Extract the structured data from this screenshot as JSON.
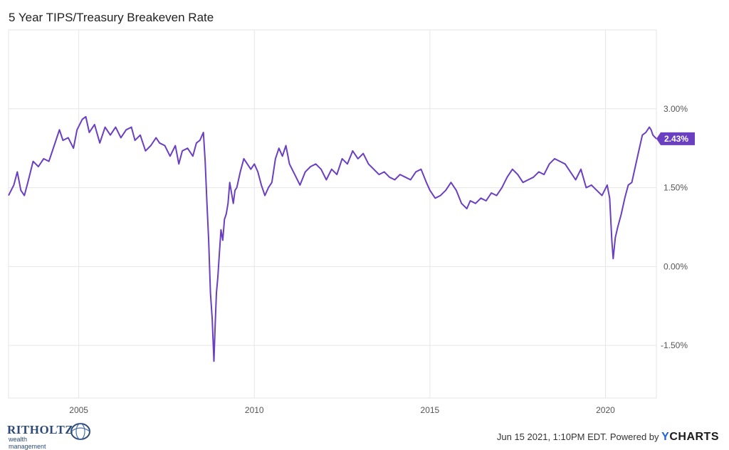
{
  "header": {
    "title": "5 Year TIPS/Treasury Breakeven Rate"
  },
  "footer": {
    "logo_name": "RITHOLTZ",
    "logo_sub": "wealth management",
    "timestamp": "Jun 15 2021, 1:10PM EDT.",
    "powered_by": "Powered by",
    "brand_y": "Y",
    "brand_rest": "CHARTS"
  },
  "colors": {
    "series": "#6a3fc1",
    "grid": "#e6e6e6",
    "axis_text": "#555555"
  },
  "chart_data": {
    "type": "line",
    "title": "5 Year TIPS/Treasury Breakeven Rate",
    "xlabel": "",
    "ylabel": "",
    "xlim": [
      2003.0,
      2021.45
    ],
    "ylim": [
      -2.5,
      4.5
    ],
    "x_ticks": [
      2005,
      2010,
      2015,
      2020
    ],
    "x_tick_labels": [
      "2005",
      "2010",
      "2015",
      "2020"
    ],
    "y_ticks": [
      3.0,
      1.5,
      0.0,
      -1.5
    ],
    "y_tick_labels": [
      "3.00%",
      "1.50%",
      "0.00%",
      "-1.50%"
    ],
    "grid": true,
    "last_value_label": "2.43%",
    "series": [
      {
        "x": [
          2003.0,
          2003.15,
          2003.25,
          2003.35,
          2003.45,
          2003.55,
          2003.7,
          2003.85,
          2004.0,
          2004.15,
          2004.3,
          2004.45,
          2004.55,
          2004.7,
          2004.85,
          2004.95,
          2005.1,
          2005.2,
          2005.3,
          2005.45,
          2005.6,
          2005.75,
          2005.9,
          2006.05,
          2006.2,
          2006.35,
          2006.5,
          2006.6,
          2006.75,
          2006.9,
          2007.05,
          2007.2,
          2007.3,
          2007.45,
          2007.6,
          2007.75,
          2007.85,
          2007.95,
          2008.1,
          2008.25,
          2008.35,
          2008.45,
          2008.55,
          2008.6,
          2008.65,
          2008.7,
          2008.75,
          2008.8,
          2008.85,
          2008.88,
          2008.92,
          2008.96,
          2009.0,
          2009.05,
          2009.1,
          2009.15,
          2009.2,
          2009.25,
          2009.3,
          2009.35,
          2009.4,
          2009.45,
          2009.5,
          2009.6,
          2009.7,
          2009.8,
          2009.9,
          2010.0,
          2010.1,
          2010.2,
          2010.3,
          2010.4,
          2010.5,
          2010.6,
          2010.7,
          2010.8,
          2010.9,
          2011.0,
          2011.15,
          2011.3,
          2011.45,
          2011.6,
          2011.75,
          2011.9,
          2012.05,
          2012.2,
          2012.35,
          2012.5,
          2012.65,
          2012.8,
          2012.95,
          2013.1,
          2013.25,
          2013.4,
          2013.55,
          2013.7,
          2013.85,
          2014.0,
          2014.15,
          2014.3,
          2014.45,
          2014.6,
          2014.75,
          2014.9,
          2015.0,
          2015.15,
          2015.3,
          2015.45,
          2015.6,
          2015.75,
          2015.9,
          2016.05,
          2016.15,
          2016.3,
          2016.45,
          2016.6,
          2016.75,
          2016.9,
          2017.05,
          2017.2,
          2017.35,
          2017.5,
          2017.65,
          2017.8,
          2017.95,
          2018.1,
          2018.25,
          2018.4,
          2018.55,
          2018.7,
          2018.85,
          2019.0,
          2019.15,
          2019.3,
          2019.45,
          2019.6,
          2019.75,
          2019.9,
          2020.05,
          2020.12,
          2020.18,
          2020.22,
          2020.28,
          2020.35,
          2020.45,
          2020.55,
          2020.65,
          2020.75,
          2020.85,
          2020.95,
          2021.05,
          2021.15,
          2021.25,
          2021.3,
          2021.35,
          2021.45
        ],
        "y": [
          1.35,
          1.55,
          1.8,
          1.45,
          1.35,
          1.6,
          2.0,
          1.9,
          2.05,
          2.0,
          2.3,
          2.6,
          2.4,
          2.45,
          2.25,
          2.6,
          2.8,
          2.85,
          2.55,
          2.7,
          2.35,
          2.65,
          2.5,
          2.65,
          2.45,
          2.6,
          2.65,
          2.4,
          2.5,
          2.2,
          2.3,
          2.45,
          2.35,
          2.3,
          2.1,
          2.3,
          1.95,
          2.2,
          2.25,
          2.1,
          2.35,
          2.4,
          2.55,
          2.0,
          1.2,
          0.5,
          -0.5,
          -1.0,
          -1.8,
          -1.2,
          -0.5,
          -0.2,
          0.2,
          0.7,
          0.5,
          0.9,
          1.0,
          1.2,
          1.6,
          1.4,
          1.2,
          1.45,
          1.5,
          1.8,
          2.05,
          1.95,
          1.85,
          1.95,
          1.8,
          1.55,
          1.35,
          1.5,
          1.6,
          2.05,
          2.25,
          2.1,
          2.3,
          1.95,
          1.75,
          1.55,
          1.8,
          1.9,
          1.95,
          1.85,
          1.65,
          1.85,
          1.75,
          2.05,
          1.95,
          2.2,
          2.05,
          2.15,
          1.95,
          1.85,
          1.75,
          1.8,
          1.7,
          1.65,
          1.75,
          1.7,
          1.65,
          1.8,
          1.85,
          1.6,
          1.45,
          1.3,
          1.35,
          1.45,
          1.6,
          1.45,
          1.2,
          1.1,
          1.25,
          1.2,
          1.3,
          1.25,
          1.4,
          1.35,
          1.5,
          1.7,
          1.85,
          1.75,
          1.6,
          1.65,
          1.7,
          1.8,
          1.75,
          1.95,
          2.05,
          2.0,
          1.95,
          1.8,
          1.65,
          1.85,
          1.5,
          1.55,
          1.45,
          1.35,
          1.55,
          1.3,
          0.5,
          0.15,
          0.55,
          0.75,
          1.0,
          1.3,
          1.55,
          1.6,
          1.9,
          2.2,
          2.5,
          2.55,
          2.65,
          2.6,
          2.5,
          2.43
        ]
      }
    ]
  }
}
